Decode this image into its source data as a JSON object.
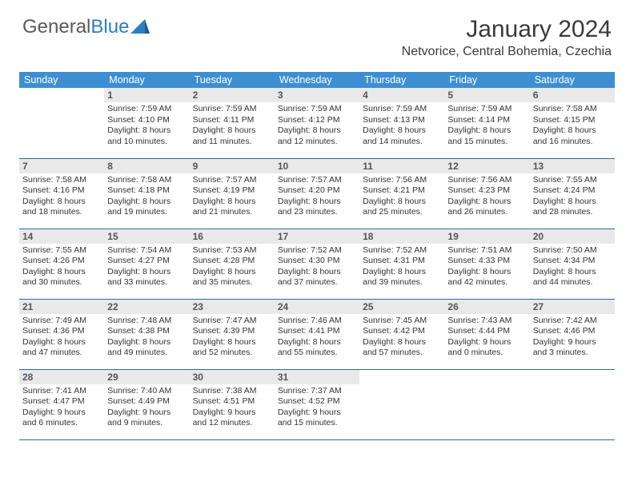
{
  "logo": {
    "word1": "General",
    "word2": "Blue"
  },
  "title": "January 2024",
  "location": "Netvorice, Central Bohemia, Czechia",
  "colors": {
    "header_bg": "#3d8fd1",
    "header_text": "#ffffff",
    "daynum_bg": "#e9e9e9",
    "row_border": "#2d6aa3",
    "logo_gray": "#5a5a5a",
    "logo_blue": "#2d7ec4"
  },
  "dayNames": [
    "Sunday",
    "Monday",
    "Tuesday",
    "Wednesday",
    "Thursday",
    "Friday",
    "Saturday"
  ],
  "startOffset": 1,
  "daysInMonth": 31,
  "cells": {
    "1": {
      "sunrise": "7:59 AM",
      "sunset": "4:10 PM",
      "daylight": "8 hours and 10 minutes."
    },
    "2": {
      "sunrise": "7:59 AM",
      "sunset": "4:11 PM",
      "daylight": "8 hours and 11 minutes."
    },
    "3": {
      "sunrise": "7:59 AM",
      "sunset": "4:12 PM",
      "daylight": "8 hours and 12 minutes."
    },
    "4": {
      "sunrise": "7:59 AM",
      "sunset": "4:13 PM",
      "daylight": "8 hours and 14 minutes."
    },
    "5": {
      "sunrise": "7:59 AM",
      "sunset": "4:14 PM",
      "daylight": "8 hours and 15 minutes."
    },
    "6": {
      "sunrise": "7:58 AM",
      "sunset": "4:15 PM",
      "daylight": "8 hours and 16 minutes."
    },
    "7": {
      "sunrise": "7:58 AM",
      "sunset": "4:16 PM",
      "daylight": "8 hours and 18 minutes."
    },
    "8": {
      "sunrise": "7:58 AM",
      "sunset": "4:18 PM",
      "daylight": "8 hours and 19 minutes."
    },
    "9": {
      "sunrise": "7:57 AM",
      "sunset": "4:19 PM",
      "daylight": "8 hours and 21 minutes."
    },
    "10": {
      "sunrise": "7:57 AM",
      "sunset": "4:20 PM",
      "daylight": "8 hours and 23 minutes."
    },
    "11": {
      "sunrise": "7:56 AM",
      "sunset": "4:21 PM",
      "daylight": "8 hours and 25 minutes."
    },
    "12": {
      "sunrise": "7:56 AM",
      "sunset": "4:23 PM",
      "daylight": "8 hours and 26 minutes."
    },
    "13": {
      "sunrise": "7:55 AM",
      "sunset": "4:24 PM",
      "daylight": "8 hours and 28 minutes."
    },
    "14": {
      "sunrise": "7:55 AM",
      "sunset": "4:26 PM",
      "daylight": "8 hours and 30 minutes."
    },
    "15": {
      "sunrise": "7:54 AM",
      "sunset": "4:27 PM",
      "daylight": "8 hours and 33 minutes."
    },
    "16": {
      "sunrise": "7:53 AM",
      "sunset": "4:28 PM",
      "daylight": "8 hours and 35 minutes."
    },
    "17": {
      "sunrise": "7:52 AM",
      "sunset": "4:30 PM",
      "daylight": "8 hours and 37 minutes."
    },
    "18": {
      "sunrise": "7:52 AM",
      "sunset": "4:31 PM",
      "daylight": "8 hours and 39 minutes."
    },
    "19": {
      "sunrise": "7:51 AM",
      "sunset": "4:33 PM",
      "daylight": "8 hours and 42 minutes."
    },
    "20": {
      "sunrise": "7:50 AM",
      "sunset": "4:34 PM",
      "daylight": "8 hours and 44 minutes."
    },
    "21": {
      "sunrise": "7:49 AM",
      "sunset": "4:36 PM",
      "daylight": "8 hours and 47 minutes."
    },
    "22": {
      "sunrise": "7:48 AM",
      "sunset": "4:38 PM",
      "daylight": "8 hours and 49 minutes."
    },
    "23": {
      "sunrise": "7:47 AM",
      "sunset": "4:39 PM",
      "daylight": "8 hours and 52 minutes."
    },
    "24": {
      "sunrise": "7:46 AM",
      "sunset": "4:41 PM",
      "daylight": "8 hours and 55 minutes."
    },
    "25": {
      "sunrise": "7:45 AM",
      "sunset": "4:42 PM",
      "daylight": "8 hours and 57 minutes."
    },
    "26": {
      "sunrise": "7:43 AM",
      "sunset": "4:44 PM",
      "daylight": "9 hours and 0 minutes."
    },
    "27": {
      "sunrise": "7:42 AM",
      "sunset": "4:46 PM",
      "daylight": "9 hours and 3 minutes."
    },
    "28": {
      "sunrise": "7:41 AM",
      "sunset": "4:47 PM",
      "daylight": "9 hours and 6 minutes."
    },
    "29": {
      "sunrise": "7:40 AM",
      "sunset": "4:49 PM",
      "daylight": "9 hours and 9 minutes."
    },
    "30": {
      "sunrise": "7:38 AM",
      "sunset": "4:51 PM",
      "daylight": "9 hours and 12 minutes."
    },
    "31": {
      "sunrise": "7:37 AM",
      "sunset": "4:52 PM",
      "daylight": "9 hours and 15 minutes."
    }
  },
  "labels": {
    "sunrise": "Sunrise:",
    "sunset": "Sunset:",
    "daylight": "Daylight:"
  }
}
